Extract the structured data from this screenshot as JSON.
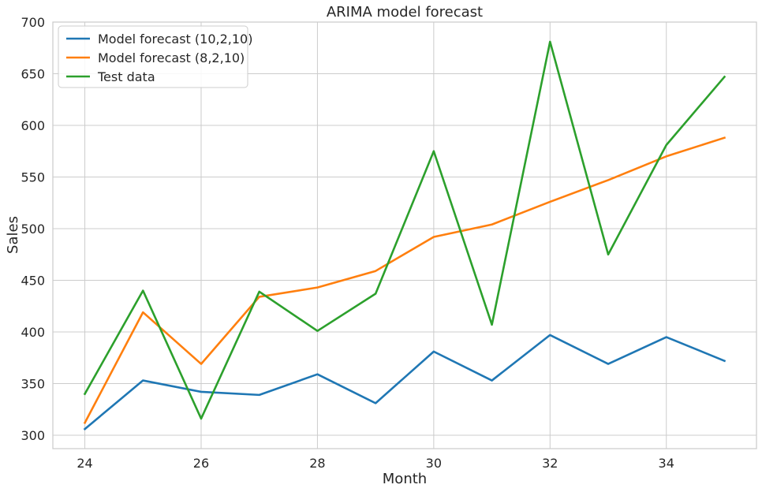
{
  "chart_data": {
    "type": "line",
    "title": "ARIMA model forecast",
    "xlabel": "Month",
    "ylabel": "Sales",
    "x": [
      24,
      25,
      26,
      27,
      28,
      29,
      30,
      31,
      32,
      33,
      34,
      35
    ],
    "xlim": [
      23.45,
      35.55
    ],
    "ylim": [
      287,
      700
    ],
    "x_ticks": [
      24,
      26,
      28,
      30,
      32,
      34
    ],
    "y_ticks": [
      300,
      350,
      400,
      450,
      500,
      550,
      600,
      650,
      700
    ],
    "grid": true,
    "legend_position": "top-left",
    "series": [
      {
        "name": "Model forecast (10,2,10)",
        "color": "#1f77b4",
        "values": [
          306,
          353,
          342,
          339,
          359,
          331,
          381,
          353,
          397,
          369,
          395,
          372
        ]
      },
      {
        "name": "Model forecast (8,2,10)",
        "color": "#ff7f0e",
        "values": [
          312,
          419,
          369,
          434,
          443,
          459,
          492,
          504,
          526,
          547,
          570,
          588
        ]
      },
      {
        "name": "Test data",
        "color": "#2ca02c",
        "values": [
          340,
          440,
          316,
          439,
          401,
          437,
          575,
          407,
          681,
          475,
          581,
          647
        ]
      }
    ]
  }
}
